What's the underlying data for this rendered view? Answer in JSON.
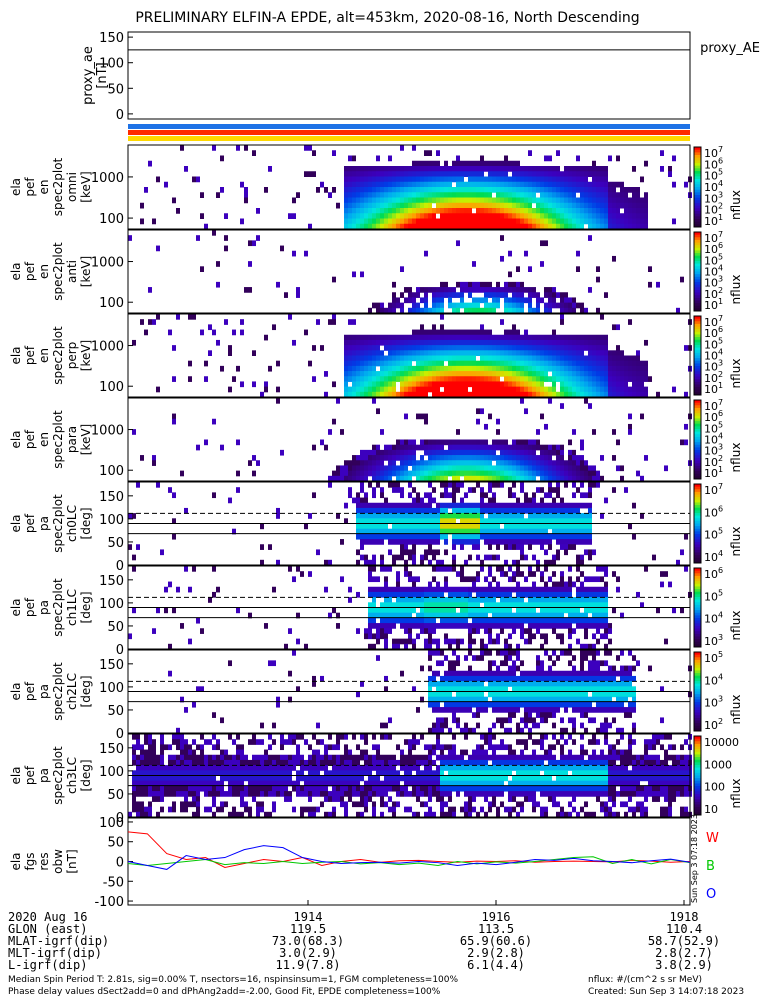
{
  "title": "PRELIMINARY ELFIN-A EPDE, alt=453km, 2020-08-16, North Descending",
  "colors": {
    "bar_blue": "#1e72e6",
    "bar_red": "#ff2a00",
    "bar_yellow": "#ffd800",
    "line_w": "#ff0000",
    "line_b": "#00c800",
    "line_o": "#0000ff"
  },
  "chart_data": [
    {
      "type": "line",
      "panel": "proxy_ae",
      "ylabel": [
        "proxy_ae",
        "[nT]"
      ],
      "ylim": [
        -10,
        160
      ],
      "yticks": [
        "150",
        "100",
        "50",
        "0"
      ],
      "legend": "proxy_AE",
      "series": [
        {
          "name": "proxy_AE",
          "values": [
            125,
            125
          ]
        }
      ]
    },
    {
      "type": "heatmap",
      "panel": "energy-omni",
      "ylabel": [
        "ela",
        "pef",
        "en",
        "spec2plot",
        "omni",
        "[keV]"
      ],
      "yscale": "log",
      "yticks": [
        "1000",
        "100"
      ],
      "colorbar": {
        "label": "nflux",
        "range": [
          10,
          10000000
        ],
        "ticks": [
          "10^7",
          "10^6",
          "10^5",
          "10^4",
          "10^3",
          "10^2",
          "10^1"
        ]
      }
    },
    {
      "type": "heatmap",
      "panel": "energy-anti",
      "ylabel": [
        "ela",
        "pef",
        "en",
        "spec2plot",
        "anti",
        "[keV]"
      ],
      "yscale": "log",
      "yticks": [
        "1000",
        "100"
      ],
      "colorbar": {
        "label": "nflux",
        "range": [
          10,
          10000000
        ],
        "ticks": [
          "10^7",
          "10^6",
          "10^5",
          "10^4",
          "10^3",
          "10^2",
          "10^1"
        ]
      }
    },
    {
      "type": "heatmap",
      "panel": "energy-perp",
      "ylabel": [
        "ela",
        "pef",
        "en",
        "spec2plot",
        "perp",
        "[keV]"
      ],
      "yscale": "log",
      "yticks": [
        "1000",
        "100"
      ],
      "colorbar": {
        "label": "nflux",
        "range": [
          10,
          10000000
        ],
        "ticks": [
          "10^7",
          "10^6",
          "10^5",
          "10^4",
          "10^3",
          "10^2",
          "10^1"
        ]
      }
    },
    {
      "type": "heatmap",
      "panel": "energy-para",
      "ylabel": [
        "ela",
        "pef",
        "en",
        "spec2plot",
        "para",
        "[keV]"
      ],
      "yscale": "log",
      "yticks": [
        "1000",
        "100"
      ],
      "colorbar": {
        "label": "nflux",
        "range": [
          10,
          10000000
        ],
        "ticks": [
          "10^7",
          "10^6",
          "10^5",
          "10^4",
          "10^3",
          "10^2",
          "10^1"
        ]
      }
    },
    {
      "type": "heatmap",
      "panel": "pa-ch0",
      "ylabel": [
        "ela",
        "pef",
        "pa",
        "spec2plot",
        "ch0LC",
        "[deg]"
      ],
      "ylim": [
        0,
        180
      ],
      "yticks": [
        "150",
        "100",
        "50",
        "0"
      ],
      "colorbar": {
        "label": "nflux",
        "range": [
          1000,
          10000000
        ],
        "ticks": [
          "10^7",
          "10^6",
          "10^5",
          "10^4"
        ]
      }
    },
    {
      "type": "heatmap",
      "panel": "pa-ch1",
      "ylabel": [
        "ela",
        "pef",
        "pa",
        "spec2plot",
        "ch1LC",
        "[deg]"
      ],
      "ylim": [
        0,
        180
      ],
      "yticks": [
        "150",
        "100",
        "50",
        "0"
      ],
      "colorbar": {
        "label": "nflux",
        "range": [
          1000,
          2000000
        ],
        "ticks": [
          "10^6",
          "10^5",
          "10^4",
          "10^3"
        ]
      }
    },
    {
      "type": "heatmap",
      "panel": "pa-ch2",
      "ylabel": [
        "ela",
        "pef",
        "pa",
        "spec2plot",
        "ch2LC",
        "[deg]"
      ],
      "ylim": [
        0,
        180
      ],
      "yticks": [
        "150",
        "100",
        "50",
        "0"
      ],
      "colorbar": {
        "label": "nflux",
        "range": [
          100,
          200000
        ],
        "ticks": [
          "10^5",
          "10^4",
          "10^3",
          "10^2"
        ]
      }
    },
    {
      "type": "heatmap",
      "panel": "pa-ch3",
      "ylabel": [
        "ela",
        "pef",
        "pa",
        "spec2plot",
        "ch3LC",
        "[deg]"
      ],
      "ylim": [
        0,
        180
      ],
      "yticks": [
        "150",
        "100",
        "50",
        "0"
      ],
      "colorbar": {
        "label": "nflux",
        "range": [
          10,
          10000
        ],
        "ticks": [
          "10000",
          "1000",
          "100",
          "10"
        ]
      }
    },
    {
      "type": "line",
      "panel": "fgs",
      "ylabel": [
        "ela",
        "fgs",
        "res",
        "obw",
        "[nT]"
      ],
      "ylim": [
        -110,
        110
      ],
      "yticks": [
        "100",
        "50",
        "0",
        "-50",
        "-100"
      ],
      "legend_labels": [
        "W",
        "B",
        "O"
      ],
      "series": [
        {
          "name": "W",
          "values": [
            75,
            70,
            20,
            5,
            10,
            -15,
            -5,
            5,
            0,
            10,
            -10,
            0,
            5,
            -2,
            2,
            3,
            0,
            -2,
            1,
            0,
            2,
            -2,
            0,
            1,
            0,
            -1,
            3,
            1,
            -2,
            0
          ]
        },
        {
          "name": "B",
          "values": [
            -5,
            -10,
            -5,
            0,
            5,
            -8,
            -3,
            -5,
            0,
            -5,
            -2,
            0,
            -6,
            -3,
            -8,
            -4,
            -10,
            0,
            -6,
            -1,
            -4,
            0,
            5,
            10,
            12,
            -5,
            5,
            -6,
            5,
            -3
          ]
        },
        {
          "name": "O",
          "values": [
            0,
            -10,
            -20,
            15,
            5,
            10,
            30,
            40,
            35,
            10,
            0,
            -5,
            -3,
            -2,
            -4,
            0,
            -3,
            -10,
            -4,
            -8,
            -2,
            5,
            3,
            8,
            2,
            0,
            -3,
            2,
            6,
            -2
          ]
        }
      ],
      "side_text": "Sun Sep  3 07:18 2023"
    }
  ],
  "bottom": {
    "row_labels": [
      "2020 Aug 16",
      "GLON (east)",
      "MLAT-igrf(dip)",
      "MLT-igrf(dip)",
      "L-igrf(dip)"
    ],
    "columns": [
      {
        "time": "1914",
        "values": [
          "119.5",
          "73.0(68.3)",
          "3.0(2.9)",
          "11.9(7.8)"
        ]
      },
      {
        "time": "1916",
        "values": [
          "113.5",
          "65.9(60.6)",
          "2.9(2.8)",
          "6.1(4.4)"
        ]
      },
      {
        "time": "1918",
        "values": [
          "110.4",
          "58.7(52.9)",
          "2.8(2.7)",
          "3.8(2.9)"
        ]
      }
    ]
  },
  "footer": {
    "left1": "Median Spin Period T: 2.81s, sig=0.00% T, nsectors=16, nspinsinsum=1, FGM completeness=100%",
    "left2": "Phase delay values dSect2add=0 and dPhAng2add=-2.00, Good Fit, EPDE completeness=100%",
    "right1": "nflux: #/(cm^2 s sr MeV)",
    "right2": "Created: Sun Sep  3 14:07:18 2023"
  }
}
